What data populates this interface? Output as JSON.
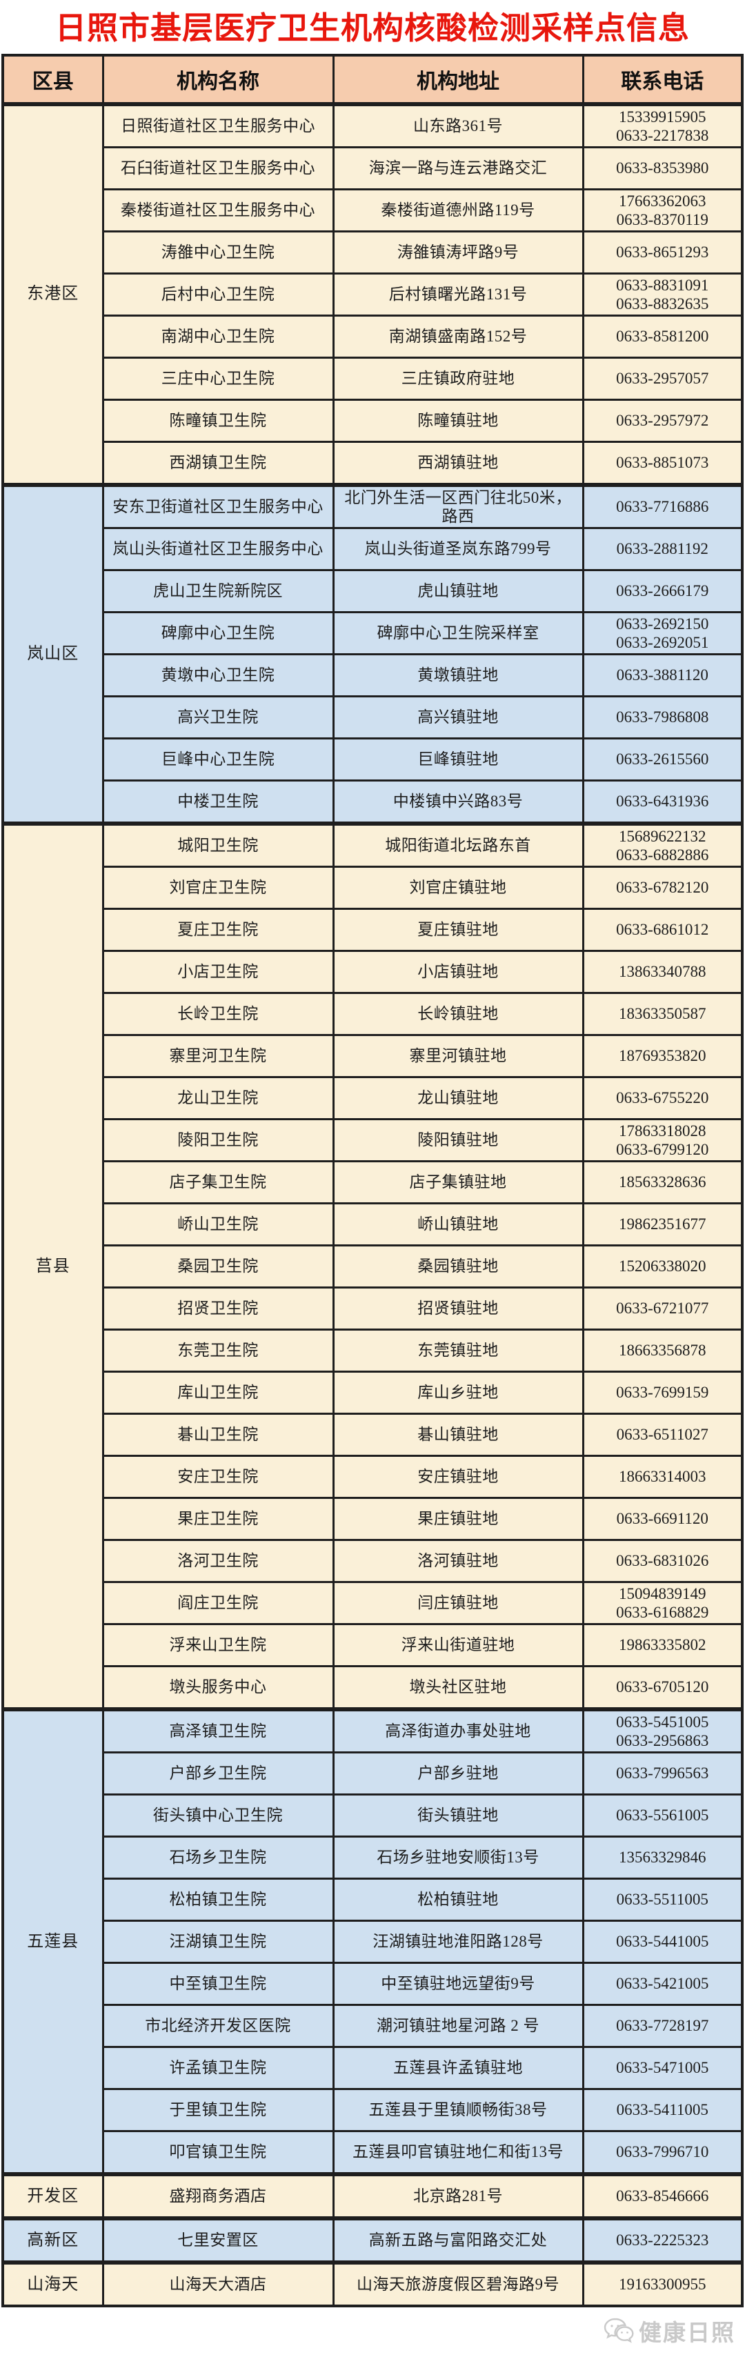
{
  "title": "日照市基层医疗卫生机构核酸检测采样点信息",
  "colors": {
    "title_red": "#e8170d",
    "header_bg": "#f6ccae",
    "block_cream": "#faf0d8",
    "block_blue": "#cfe0f0",
    "border": "#1e1e1e",
    "watermark_gray": "#c9c9c9"
  },
  "table": {
    "headers": [
      "区县",
      "机构名称",
      "机构地址",
      "联系电话"
    ],
    "regions": [
      {
        "name": "东港区",
        "theme": "cream",
        "rows": [
          {
            "org": "日照街道社区卫生服务中心",
            "addr": "山东路361号",
            "phones": [
              "15339915905",
              "0633-2217838"
            ]
          },
          {
            "org": "石臼街道社区卫生服务中心",
            "addr": "海滨一路与连云港路交汇",
            "phones": [
              "0633-8353980"
            ]
          },
          {
            "org": "秦楼街道社区卫生服务中心",
            "addr": "秦楼街道德州路119号",
            "phones": [
              "17663362063",
              "0633-8370119"
            ]
          },
          {
            "org": "涛雒中心卫生院",
            "addr": "涛雒镇涛坪路9号",
            "phones": [
              "0633-8651293"
            ]
          },
          {
            "org": "后村中心卫生院",
            "addr": "后村镇曙光路131号",
            "phones": [
              "0633-8831091",
              "0633-8832635"
            ]
          },
          {
            "org": "南湖中心卫生院",
            "addr": "南湖镇盛南路152号",
            "phones": [
              "0633-8581200"
            ]
          },
          {
            "org": "三庄中心卫生院",
            "addr": "三庄镇政府驻地",
            "phones": [
              "0633-2957057"
            ]
          },
          {
            "org": "陈疃镇卫生院",
            "addr": "陈疃镇驻地",
            "phones": [
              "0633-2957972"
            ]
          },
          {
            "org": "西湖镇卫生院",
            "addr": "西湖镇驻地",
            "phones": [
              "0633-8851073"
            ]
          }
        ]
      },
      {
        "name": "岚山区",
        "theme": "blue",
        "rows": [
          {
            "org": "安东卫街道社区卫生服务中心",
            "addr": "北门外生活一区西门往北50米，路西",
            "phones": [
              "0633-7716886"
            ]
          },
          {
            "org": "岚山头街道社区卫生服务中心",
            "addr": "岚山头街道圣岚东路799号",
            "phones": [
              "0633-2881192"
            ]
          },
          {
            "org": "虎山卫生院新院区",
            "addr": "虎山镇驻地",
            "phones": [
              "0633-2666179"
            ]
          },
          {
            "org": "碑廓中心卫生院",
            "addr": "碑廓中心卫生院采样室",
            "phones": [
              "0633-2692150",
              "0633-2692051"
            ]
          },
          {
            "org": "黄墩中心卫生院",
            "addr": "黄墩镇驻地",
            "phones": [
              "0633-3881120"
            ]
          },
          {
            "org": "高兴卫生院",
            "addr": "高兴镇驻地",
            "phones": [
              "0633-7986808"
            ]
          },
          {
            "org": "巨峰中心卫生院",
            "addr": "巨峰镇驻地",
            "phones": [
              "0633-2615560"
            ]
          },
          {
            "org": "中楼卫生院",
            "addr": "中楼镇中兴路83号",
            "phones": [
              "0633-6431936"
            ]
          }
        ]
      },
      {
        "name": "莒县",
        "theme": "cream",
        "rows": [
          {
            "org": "城阳卫生院",
            "addr": "城阳街道北坛路东首",
            "phones": [
              "15689622132",
              "0633-6882886"
            ]
          },
          {
            "org": "刘官庄卫生院",
            "addr": "刘官庄镇驻地",
            "phones": [
              "0633-6782120"
            ]
          },
          {
            "org": "夏庄卫生院",
            "addr": "夏庄镇驻地",
            "phones": [
              "0633-6861012"
            ]
          },
          {
            "org": "小店卫生院",
            "addr": "小店镇驻地",
            "phones": [
              "13863340788"
            ]
          },
          {
            "org": "长岭卫生院",
            "addr": "长岭镇驻地",
            "phones": [
              "18363350587"
            ]
          },
          {
            "org": "寨里河卫生院",
            "addr": "寨里河镇驻地",
            "phones": [
              "18769353820"
            ]
          },
          {
            "org": "龙山卫生院",
            "addr": "龙山镇驻地",
            "phones": [
              "0633-6755220"
            ]
          },
          {
            "org": "陵阳卫生院",
            "addr": "陵阳镇驻地",
            "phones": [
              "17863318028",
              "0633-6799120"
            ]
          },
          {
            "org": "店子集卫生院",
            "addr": "店子集镇驻地",
            "phones": [
              "18563328636"
            ]
          },
          {
            "org": "峤山卫生院",
            "addr": "峤山镇驻地",
            "phones": [
              "19862351677"
            ]
          },
          {
            "org": "桑园卫生院",
            "addr": "桑园镇驻地",
            "phones": [
              "15206338020"
            ]
          },
          {
            "org": "招贤卫生院",
            "addr": "招贤镇驻地",
            "phones": [
              "0633-6721077"
            ]
          },
          {
            "org": "东莞卫生院",
            "addr": "东莞镇驻地",
            "phones": [
              "18663356878"
            ]
          },
          {
            "org": "库山卫生院",
            "addr": "库山乡驻地",
            "phones": [
              "0633-7699159"
            ]
          },
          {
            "org": "碁山卫生院",
            "addr": "碁山镇驻地",
            "phones": [
              "0633-6511027"
            ]
          },
          {
            "org": "安庄卫生院",
            "addr": "安庄镇驻地",
            "phones": [
              "18663314003"
            ]
          },
          {
            "org": "果庄卫生院",
            "addr": "果庄镇驻地",
            "phones": [
              "0633-6691120"
            ]
          },
          {
            "org": "洛河卫生院",
            "addr": "洛河镇驻地",
            "phones": [
              "0633-6831026"
            ]
          },
          {
            "org": "阎庄卫生院",
            "addr": "闫庄镇驻地",
            "phones": [
              "15094839149",
              "0633-6168829"
            ]
          },
          {
            "org": "浮来山卫生院",
            "addr": "浮来山街道驻地",
            "phones": [
              "19863335802"
            ]
          },
          {
            "org": "墩头服务中心",
            "addr": "墩头社区驻地",
            "phones": [
              "0633-6705120"
            ]
          }
        ]
      },
      {
        "name": "五莲县",
        "theme": "blue",
        "rows": [
          {
            "org": "高泽镇卫生院",
            "addr": "高泽街道办事处驻地",
            "phones": [
              "0633-5451005",
              "0633-2956863"
            ]
          },
          {
            "org": "户部乡卫生院",
            "addr": "户部乡驻地",
            "phones": [
              "0633-7996563"
            ]
          },
          {
            "org": "街头镇中心卫生院",
            "addr": "街头镇驻地",
            "phones": [
              "0633-5561005"
            ]
          },
          {
            "org": "石场乡卫生院",
            "addr": "石场乡驻地安顺街13号",
            "phones": [
              "13563329846"
            ]
          },
          {
            "org": "松柏镇卫生院",
            "addr": "松柏镇驻地",
            "phones": [
              "0633-5511005"
            ]
          },
          {
            "org": "汪湖镇卫生院",
            "addr": "汪湖镇驻地淮阳路128号",
            "phones": [
              "0633-5441005"
            ]
          },
          {
            "org": "中至镇卫生院",
            "addr": "中至镇驻地远望街9号",
            "phones": [
              "0633-5421005"
            ]
          },
          {
            "org": "市北经济开发区医院",
            "addr": "潮河镇驻地星河路 2 号",
            "phones": [
              "0633-7728197"
            ]
          },
          {
            "org": "许孟镇卫生院",
            "addr": "五莲县许孟镇驻地",
            "phones": [
              "0633-5471005"
            ]
          },
          {
            "org": "于里镇卫生院",
            "addr": "五莲县于里镇顺畅街38号",
            "phones": [
              "0633-5411005"
            ]
          },
          {
            "org": "叩官镇卫生院",
            "addr": "五莲县叩官镇驻地仁和街13号",
            "phones": [
              "0633-7996710"
            ]
          }
        ]
      },
      {
        "name": "开发区",
        "theme": "cream",
        "rows": [
          {
            "org": "盛翔商务酒店",
            "addr": "北京路281号",
            "phones": [
              "0633-8546666"
            ]
          }
        ]
      },
      {
        "name": "高新区",
        "theme": "blue",
        "rows": [
          {
            "org": "七里安置区",
            "addr": "高新五路与富阳路交汇处",
            "phones": [
              "0633-2225323"
            ]
          }
        ]
      },
      {
        "name": "山海天",
        "theme": "cream",
        "rows": [
          {
            "org": "山海天大酒店",
            "addr": "山海天旅游度假区碧海路9号",
            "phones": [
              "19163300955"
            ]
          }
        ]
      }
    ]
  },
  "watermark": {
    "icon": "wechat-chat-bubbles-icon",
    "label": "健康日照"
  }
}
